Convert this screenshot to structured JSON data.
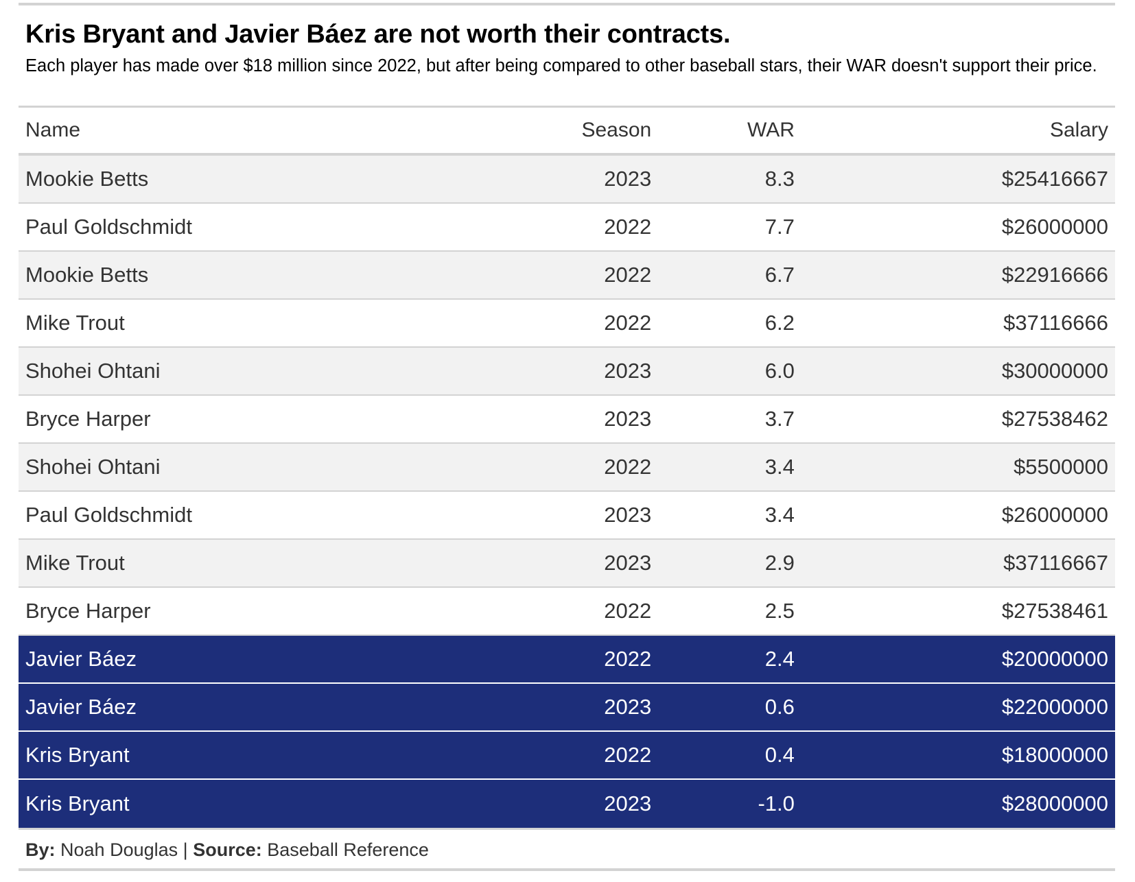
{
  "header": {
    "title": "Kris Bryant and Javier Báez are not worth their contracts.",
    "subtitle": "Each player has made over $18 million since 2022, but after being compared to other baseball stars, their WAR doesn't support their price."
  },
  "colors": {
    "highlight_row": "#1d2e7a",
    "striped_row": "#f2f2f2",
    "rule": "#d3d3d3"
  },
  "footer": {
    "by_label": "By:",
    "by_value": "Noah Douglas",
    "separator": "|",
    "source_label": "Source:",
    "source_value": "Baseball Reference"
  },
  "chart_data": {
    "type": "table",
    "title": "Kris Bryant and Javier Báez are not worth their contracts.",
    "columns": [
      "Name",
      "Season",
      "WAR",
      "Salary"
    ],
    "rows": [
      {
        "name": "Mookie Betts",
        "season": "2023",
        "war": "8.3",
        "salary": "$25416667",
        "highlight": false
      },
      {
        "name": "Paul Goldschmidt",
        "season": "2022",
        "war": "7.7",
        "salary": "$26000000",
        "highlight": false
      },
      {
        "name": "Mookie Betts",
        "season": "2022",
        "war": "6.7",
        "salary": "$22916666",
        "highlight": false
      },
      {
        "name": "Mike Trout",
        "season": "2022",
        "war": "6.2",
        "salary": "$37116666",
        "highlight": false
      },
      {
        "name": "Shohei Ohtani",
        "season": "2023",
        "war": "6.0",
        "salary": "$30000000",
        "highlight": false
      },
      {
        "name": "Bryce Harper",
        "season": "2023",
        "war": "3.7",
        "salary": "$27538462",
        "highlight": false
      },
      {
        "name": "Shohei Ohtani",
        "season": "2022",
        "war": "3.4",
        "salary": "$5500000",
        "highlight": false
      },
      {
        "name": "Paul Goldschmidt",
        "season": "2023",
        "war": "3.4",
        "salary": "$26000000",
        "highlight": false
      },
      {
        "name": "Mike Trout",
        "season": "2023",
        "war": "2.9",
        "salary": "$37116667",
        "highlight": false
      },
      {
        "name": "Bryce Harper",
        "season": "2022",
        "war": "2.5",
        "salary": "$27538461",
        "highlight": false
      },
      {
        "name": "Javier Báez",
        "season": "2022",
        "war": "2.4",
        "salary": "$20000000",
        "highlight": true
      },
      {
        "name": "Javier Báez",
        "season": "2023",
        "war": "0.6",
        "salary": "$22000000",
        "highlight": true
      },
      {
        "name": "Kris Bryant",
        "season": "2022",
        "war": "0.4",
        "salary": "$18000000",
        "highlight": true
      },
      {
        "name": "Kris Bryant",
        "season": "2023",
        "war": "-1.0",
        "salary": "$28000000",
        "highlight": true
      }
    ]
  }
}
